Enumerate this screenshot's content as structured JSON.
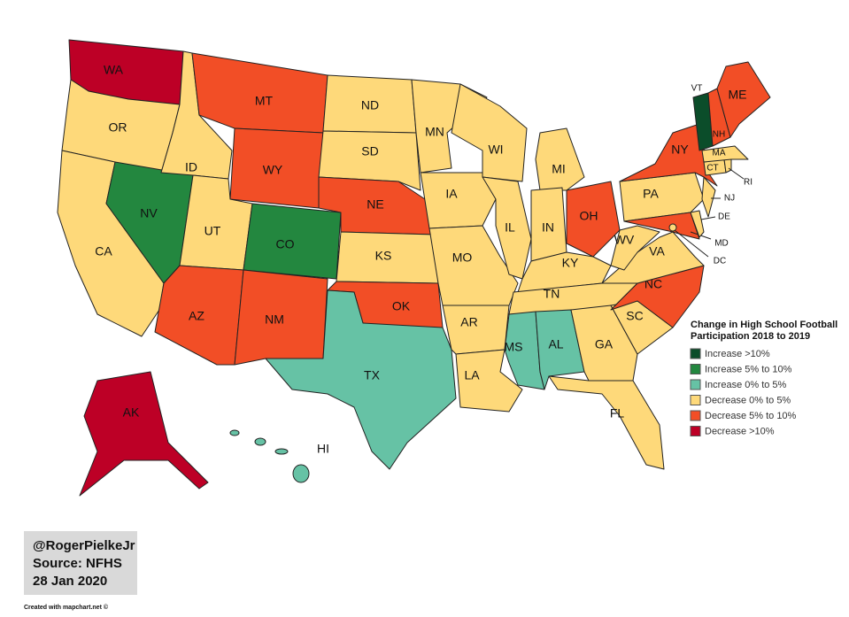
{
  "map": {
    "legend": {
      "title": [
        "Change in High School Football",
        "Participation 2018 to 2019"
      ],
      "items": [
        {
          "label": "Increase >10%",
          "color": "#0b4d2a"
        },
        {
          "label": "Increase 5% to 10%",
          "color": "#23873f"
        },
        {
          "label": "Increase 0% to 5%",
          "color": "#66c2a5"
        },
        {
          "label": "Decrease 0% to 5%",
          "color": "#fed97a"
        },
        {
          "label": "Decrease 5% to 10%",
          "color": "#f24e26"
        },
        {
          "label": "Decrease >10%",
          "color": "#bd0026"
        }
      ]
    },
    "states": [
      {
        "label": "WA",
        "category": 5
      },
      {
        "label": "OR",
        "category": 3
      },
      {
        "label": "CA",
        "category": 3
      },
      {
        "label": "NV",
        "category": 1
      },
      {
        "label": "ID",
        "category": 3
      },
      {
        "label": "MT",
        "category": 4
      },
      {
        "label": "WY",
        "category": 4
      },
      {
        "label": "UT",
        "category": 3
      },
      {
        "label": "CO",
        "category": 1
      },
      {
        "label": "AZ",
        "category": 4
      },
      {
        "label": "NM",
        "category": 4
      },
      {
        "label": "ND",
        "category": 3
      },
      {
        "label": "SD",
        "category": 3
      },
      {
        "label": "NE",
        "category": 4
      },
      {
        "label": "KS",
        "category": 3
      },
      {
        "label": "OK",
        "category": 4
      },
      {
        "label": "TX",
        "category": 2
      },
      {
        "label": "MN",
        "category": 3
      },
      {
        "label": "IA",
        "category": 3
      },
      {
        "label": "MO",
        "category": 3
      },
      {
        "label": "AR",
        "category": 3
      },
      {
        "label": "LA",
        "category": 3
      },
      {
        "label": "WI",
        "category": 3
      },
      {
        "label": "IL",
        "category": 3
      },
      {
        "label": "MI",
        "category": 3
      },
      {
        "label": "IN",
        "category": 3
      },
      {
        "label": "OH",
        "category": 4
      },
      {
        "label": "KY",
        "category": 3
      },
      {
        "label": "TN",
        "category": 3
      },
      {
        "label": "MS",
        "category": 2
      },
      {
        "label": "AL",
        "category": 2
      },
      {
        "label": "GA",
        "category": 3
      },
      {
        "label": "FL",
        "category": 3
      },
      {
        "label": "SC",
        "category": 3
      },
      {
        "label": "NC",
        "category": 4
      },
      {
        "label": "VA",
        "category": 3
      },
      {
        "label": "WV",
        "category": 3
      },
      {
        "label": "PA",
        "category": 3
      },
      {
        "label": "NY",
        "category": 4
      },
      {
        "label": "MD",
        "category": 4
      },
      {
        "label": "DE",
        "category": 3
      },
      {
        "label": "NJ",
        "category": 3
      },
      {
        "label": "DC",
        "category": 3
      },
      {
        "label": "CT",
        "category": 3
      },
      {
        "label": "RI",
        "category": 3
      },
      {
        "label": "MA",
        "category": 3
      },
      {
        "label": "VT",
        "category": 0
      },
      {
        "label": "NH",
        "category": 4
      },
      {
        "label": "ME",
        "category": 4
      },
      {
        "label": "AK",
        "category": 5
      },
      {
        "label": "HI",
        "category": 2
      }
    ],
    "credit": [
      "@RogerPielkeJr",
      "Source: NFHS",
      "28 Jan 2020"
    ],
    "footer": "Created with mapchart.net ©"
  }
}
